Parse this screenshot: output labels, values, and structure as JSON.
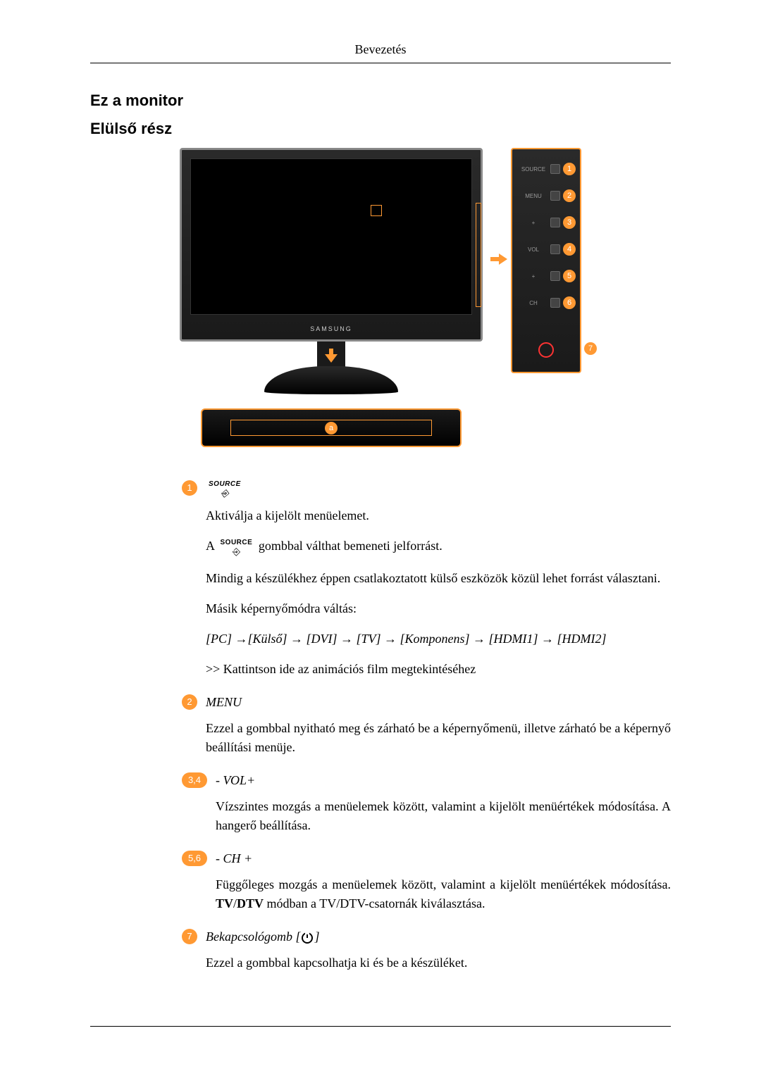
{
  "header": "Bevezetés",
  "title1": "Ez a monitor",
  "title2": "Elülső rész",
  "diagram": {
    "brand": "SAMSUNG",
    "panel_labels": [
      "SOURCE",
      "MENU",
      "+",
      "VOL",
      "-",
      "+",
      "CH",
      "-"
    ],
    "badges": [
      "1",
      "2",
      "3",
      "4",
      "5",
      "6",
      "7"
    ],
    "soundbar_badge": "a",
    "colors": {
      "highlight": "#ff9933",
      "panel_bg": "#1a1a1a",
      "screen": "#000000",
      "border": "#888888"
    }
  },
  "items": [
    {
      "badge": "1",
      "wide": false,
      "title_type": "source-icon",
      "paragraphs": [
        "Aktiválja a kijelölt menüelemet.",
        {
          "type": "source-line",
          "prefix": "A ",
          "suffix": " gombbal válthat bemeneti jelforrást."
        },
        "Mindig a készülékhez éppen csatlakoztatott külső eszközök közül lehet forrást választani.",
        "Másik képernyőmódra váltás:",
        {
          "type": "sequence",
          "text": "[PC] →[Külső] → [DVI] → [TV] → [Komponens] → [HDMI1] → [HDMI2]"
        },
        ">> Kattintson ide az animációs film megtekintéséhez"
      ]
    },
    {
      "badge": "2",
      "wide": false,
      "title": "MENU",
      "paragraphs": [
        "Ezzel a gombbal nyitható meg és zárható be a képernyőmenü, illetve zárható be a képernyő beállítási menüje."
      ]
    },
    {
      "badge": "3,4",
      "wide": true,
      "title": "- VOL+",
      "paragraphs": [
        "Vízszintes mozgás a menüelemek között, valamint a kijelölt menüértékek módosítása. A hangerő beállítása."
      ]
    },
    {
      "badge": "5,6",
      "wide": true,
      "title": "- CH +",
      "paragraphs": [
        {
          "type": "mixed",
          "parts": [
            {
              "text": "Függőleges mozgás a menüelemek között, valamint a kijelölt menüértékek módosítása. "
            },
            {
              "text": "TV",
              "bold": true
            },
            {
              "text": "/"
            },
            {
              "text": "DTV",
              "bold": true
            },
            {
              "text": " módban a TV/DTV-csatornák kiválasztása."
            }
          ]
        }
      ]
    },
    {
      "badge": "7",
      "wide": false,
      "title_type": "power",
      "title": "Bekapcsológomb [",
      "title_suffix": "]",
      "paragraphs": [
        "Ezzel a gombbal kapcsolhatja ki és be a készüléket."
      ]
    }
  ]
}
